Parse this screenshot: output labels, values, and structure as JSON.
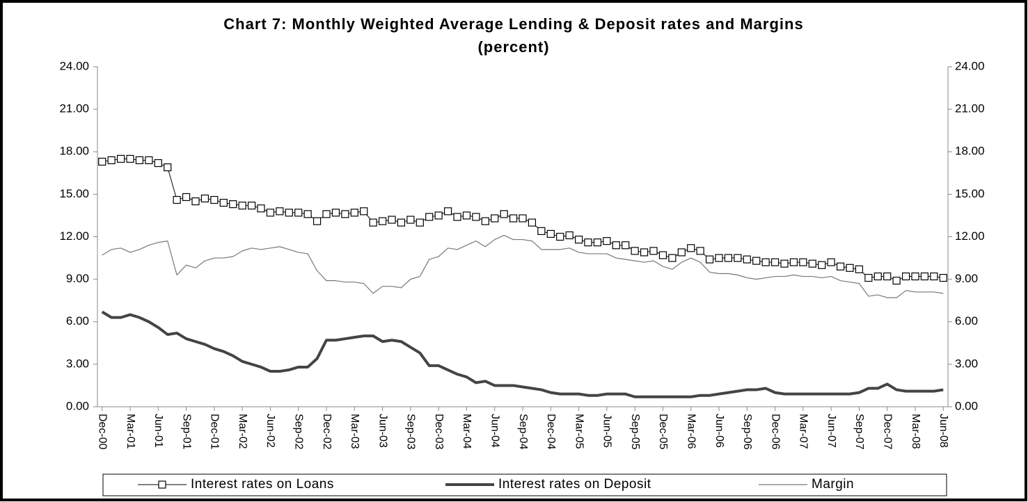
{
  "chart_data": {
    "type": "line",
    "title": "Chart 7: Monthly Weighted Average Lending & Deposit rates and Margins",
    "subtitle": "(percent)",
    "categories": [
      "Dec-00",
      null,
      null,
      "Mar-01",
      null,
      null,
      "Jun-01",
      null,
      null,
      "Sep-01",
      null,
      null,
      "Dec-01",
      null,
      null,
      "Mar-02",
      null,
      null,
      "Jun-02",
      null,
      null,
      "Sep-02",
      null,
      null,
      "Dec-02",
      null,
      null,
      "Mar-03",
      null,
      null,
      "Jun-03",
      null,
      null,
      "Sep-03",
      null,
      null,
      "Dec-03",
      null,
      null,
      "Mar-04",
      null,
      null,
      "Jun-04",
      null,
      null,
      "Sep-04",
      null,
      null,
      "Dec-04",
      null,
      null,
      "Mar-05",
      null,
      null,
      "Jun-05",
      null,
      null,
      "Sep-05",
      null,
      null,
      "Dec-05",
      null,
      null,
      "Mar-06",
      null,
      null,
      "Jun-06",
      null,
      null,
      "Sep-06",
      null,
      null,
      "Dec-06",
      null,
      null,
      "Mar-07",
      null,
      null,
      "Jun-07",
      null,
      null,
      "Sep-07",
      null,
      null,
      "Dec-07",
      null,
      null,
      "Mar-08",
      null,
      null,
      "Jun-08"
    ],
    "series": [
      {
        "name": "Interest rates on Loans",
        "color": "#000000",
        "line_width": 1,
        "marker": "square",
        "values": [
          17.3,
          17.4,
          17.5,
          17.5,
          17.4,
          17.4,
          17.2,
          16.9,
          14.6,
          14.8,
          14.5,
          14.7,
          14.6,
          14.4,
          14.3,
          14.2,
          14.2,
          14.0,
          13.7,
          13.8,
          13.7,
          13.7,
          13.6,
          13.1,
          13.6,
          13.7,
          13.6,
          13.7,
          13.8,
          13.0,
          13.1,
          13.2,
          13.0,
          13.2,
          13.0,
          13.4,
          13.5,
          13.8,
          13.4,
          13.5,
          13.4,
          13.1,
          13.3,
          13.6,
          13.3,
          13.3,
          13.0,
          12.4,
          12.2,
          12.0,
          12.1,
          11.8,
          11.6,
          11.6,
          11.7,
          11.4,
          11.4,
          11.0,
          10.9,
          11.0,
          10.7,
          10.5,
          10.9,
          11.2,
          11.0,
          10.4,
          10.5,
          10.5,
          10.5,
          10.4,
          10.3,
          10.2,
          10.2,
          10.1,
          10.2,
          10.2,
          10.1,
          10.0,
          10.2,
          9.9,
          9.8,
          9.7,
          9.1,
          9.2,
          9.2,
          8.9,
          9.2,
          9.2,
          9.2,
          9.2,
          9.1
        ]
      },
      {
        "name": "Interest rates on Deposit",
        "color": "#444444",
        "line_width": 4,
        "values": [
          6.7,
          6.3,
          6.3,
          6.5,
          6.3,
          6.0,
          5.6,
          5.1,
          5.2,
          4.8,
          4.6,
          4.4,
          4.1,
          3.9,
          3.6,
          3.2,
          3.0,
          2.8,
          2.5,
          2.5,
          2.6,
          2.8,
          2.8,
          3.4,
          4.7,
          4.7,
          4.8,
          4.9,
          5.0,
          5.0,
          4.6,
          4.7,
          4.6,
          4.2,
          3.8,
          2.9,
          2.9,
          2.6,
          2.3,
          2.1,
          1.7,
          1.8,
          1.5,
          1.5,
          1.5,
          1.4,
          1.3,
          1.2,
          1.0,
          0.9,
          0.9,
          0.9,
          0.8,
          0.8,
          0.9,
          0.9,
          0.9,
          0.7,
          0.7,
          0.7,
          0.7,
          0.7,
          0.7,
          0.7,
          0.8,
          0.8,
          0.9,
          1.0,
          1.1,
          1.2,
          1.2,
          1.3,
          1.0,
          0.9,
          0.9,
          0.9,
          0.9,
          0.9,
          0.9,
          0.9,
          0.9,
          1.0,
          1.3,
          1.3,
          1.6,
          1.2,
          1.1,
          1.1,
          1.1,
          1.1,
          1.2
        ]
      },
      {
        "name": "Margin",
        "color": "#777777",
        "line_width": 1.2,
        "values": [
          10.7,
          11.1,
          11.2,
          10.9,
          11.1,
          11.4,
          11.6,
          11.7,
          9.3,
          10.0,
          9.8,
          10.3,
          10.5,
          10.5,
          10.6,
          11.0,
          11.2,
          11.1,
          11.2,
          11.3,
          11.1,
          10.9,
          10.8,
          9.6,
          8.9,
          8.9,
          8.8,
          8.8,
          8.7,
          8.0,
          8.5,
          8.5,
          8.4,
          9.0,
          9.2,
          10.4,
          10.6,
          11.2,
          11.1,
          11.4,
          11.7,
          11.3,
          11.8,
          12.1,
          11.8,
          11.8,
          11.7,
          11.1,
          11.1,
          11.1,
          11.2,
          10.9,
          10.8,
          10.8,
          10.8,
          10.5,
          10.4,
          10.3,
          10.2,
          10.3,
          9.9,
          9.7,
          10.2,
          10.5,
          10.2,
          9.5,
          9.4,
          9.4,
          9.3,
          9.1,
          9.0,
          9.1,
          9.2,
          9.2,
          9.3,
          9.2,
          9.2,
          9.1,
          9.2,
          8.9,
          8.8,
          8.7,
          7.8,
          7.9,
          7.7,
          7.7,
          8.2,
          8.1,
          8.1,
          8.1,
          8.0
        ]
      }
    ],
    "ylim": [
      0,
      24
    ],
    "yticks": [
      {
        "value": 0,
        "label": "0.00"
      },
      {
        "value": 3,
        "label": "3.00"
      },
      {
        "value": 6,
        "label": "6.00"
      },
      {
        "value": 9,
        "label": "9.00"
      },
      {
        "value": 12,
        "label": "12.00"
      },
      {
        "value": 15,
        "label": "15.00"
      },
      {
        "value": 18,
        "label": "18.00"
      },
      {
        "value": 21,
        "label": "21.00"
      },
      {
        "value": 24,
        "label": "24.00"
      }
    ],
    "y2lim": [
      0,
      24
    ],
    "y2ticks": [
      {
        "value": 0,
        "label": "0.00"
      },
      {
        "value": 3,
        "label": "3.00"
      },
      {
        "value": 6,
        "label": "6.00"
      },
      {
        "value": 9,
        "label": "9.00"
      },
      {
        "value": 12,
        "label": "12.00"
      },
      {
        "value": 15,
        "label": "15.00"
      },
      {
        "value": 18,
        "label": "18.00"
      },
      {
        "value": 21,
        "label": "21.00"
      },
      {
        "value": 24,
        "label": "24.00"
      }
    ],
    "grid": false,
    "legend": "bottom"
  }
}
